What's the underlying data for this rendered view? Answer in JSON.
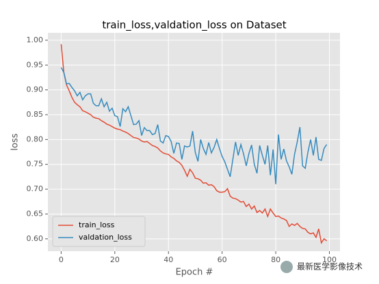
{
  "chart_data": {
    "type": "line",
    "title": "train_loss,valdation_loss on Dataset",
    "xlabel": "Epoch #",
    "ylabel": "loss",
    "x": [
      0,
      1,
      2,
      3,
      4,
      5,
      6,
      7,
      8,
      9,
      10,
      11,
      12,
      13,
      14,
      15,
      16,
      17,
      18,
      19,
      20,
      21,
      22,
      23,
      24,
      25,
      26,
      27,
      28,
      29,
      30,
      31,
      32,
      33,
      34,
      35,
      36,
      37,
      38,
      39,
      40,
      41,
      42,
      43,
      44,
      45,
      46,
      47,
      48,
      49,
      50,
      51,
      52,
      53,
      54,
      55,
      56,
      57,
      58,
      59,
      60,
      61,
      62,
      63,
      64,
      65,
      66,
      67,
      68,
      69,
      70,
      71,
      72,
      73,
      74,
      75,
      76,
      77,
      78,
      79,
      80,
      81,
      82,
      83,
      84,
      85,
      86,
      87,
      88,
      89,
      90,
      91,
      92,
      93,
      94,
      95,
      96,
      97,
      98,
      99
    ],
    "series": [
      {
        "name": "train_loss",
        "color": "#e24a33",
        "values": [
          0.992,
          0.935,
          0.91,
          0.898,
          0.885,
          0.875,
          0.87,
          0.866,
          0.858,
          0.856,
          0.853,
          0.85,
          0.845,
          0.843,
          0.842,
          0.838,
          0.835,
          0.831,
          0.829,
          0.826,
          0.823,
          0.821,
          0.82,
          0.817,
          0.815,
          0.812,
          0.808,
          0.804,
          0.803,
          0.801,
          0.797,
          0.795,
          0.796,
          0.792,
          0.788,
          0.786,
          0.783,
          0.777,
          0.773,
          0.771,
          0.77,
          0.765,
          0.762,
          0.757,
          0.754,
          0.748,
          0.738,
          0.726,
          0.74,
          0.733,
          0.722,
          0.721,
          0.718,
          0.712,
          0.713,
          0.708,
          0.709,
          0.705,
          0.697,
          0.694,
          0.694,
          0.695,
          0.701,
          0.686,
          0.682,
          0.681,
          0.678,
          0.674,
          0.675,
          0.665,
          0.67,
          0.66,
          0.666,
          0.653,
          0.657,
          0.652,
          0.66,
          0.645,
          0.66,
          0.652,
          0.645,
          0.646,
          0.642,
          0.64,
          0.637,
          0.625,
          0.63,
          0.627,
          0.631,
          0.625,
          0.621,
          0.62,
          0.613,
          0.61,
          0.612,
          0.603,
          0.62,
          0.592,
          0.6,
          0.596
        ]
      },
      {
        "name": "valdation_loss",
        "color": "#348abd",
        "values": [
          0.945,
          0.935,
          0.912,
          0.913,
          0.905,
          0.898,
          0.888,
          0.895,
          0.88,
          0.888,
          0.892,
          0.892,
          0.873,
          0.868,
          0.868,
          0.882,
          0.866,
          0.875,
          0.857,
          0.863,
          0.848,
          0.846,
          0.826,
          0.862,
          0.856,
          0.866,
          0.848,
          0.83,
          0.831,
          0.838,
          0.808,
          0.824,
          0.818,
          0.818,
          0.81,
          0.812,
          0.83,
          0.797,
          0.793,
          0.808,
          0.806,
          0.796,
          0.772,
          0.793,
          0.792,
          0.76,
          0.787,
          0.785,
          0.787,
          0.817,
          0.774,
          0.756,
          0.8,
          0.782,
          0.77,
          0.794,
          0.773,
          0.784,
          0.8,
          0.782,
          0.766,
          0.755,
          0.74,
          0.725,
          0.76,
          0.795,
          0.768,
          0.79,
          0.771,
          0.747,
          0.772,
          0.789,
          0.75,
          0.732,
          0.788,
          0.768,
          0.75,
          0.788,
          0.728,
          0.78,
          0.71,
          0.81,
          0.76,
          0.781,
          0.757,
          0.745,
          0.73,
          0.77,
          0.795,
          0.825,
          0.747,
          0.742,
          0.775,
          0.8,
          0.768,
          0.805,
          0.76,
          0.758,
          0.782,
          0.79
        ]
      }
    ],
    "xlim": [
      -4.95,
      103.95
    ],
    "ylim": [
      0.575,
      1.015
    ],
    "xticks": [
      0,
      20,
      40,
      60,
      80,
      100
    ],
    "yticks": [
      {
        "value": 0.6,
        "label": "0.60"
      },
      0.65,
      {
        "value": 0.7,
        "label": "0.70"
      },
      0.75,
      {
        "value": 0.8,
        "label": "0.80"
      },
      0.85,
      {
        "value": 0.9,
        "label": "0.90"
      },
      0.95,
      {
        "value": 1.0,
        "label": "1.00"
      }
    ],
    "grid": true,
    "legend": "lower left",
    "background": "#e5e5e5",
    "watermark": "最新医学影像技术"
  }
}
